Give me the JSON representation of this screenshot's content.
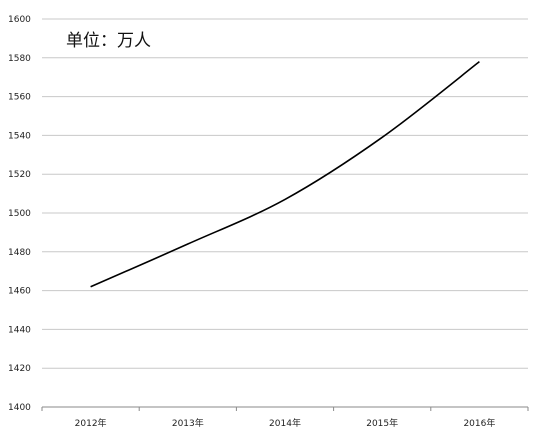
{
  "chart_data": {
    "type": "line",
    "unit_label": "单位：万人",
    "categories": [
      "2012年",
      "2013年",
      "2014年",
      "2015年",
      "2016年"
    ],
    "series": [
      {
        "values": [
          1462,
          1484,
          1507,
          1539,
          1578
        ]
      }
    ],
    "ylim": [
      1400,
      1600
    ],
    "yticks": [
      1400,
      1420,
      1440,
      1460,
      1480,
      1500,
      1520,
      1540,
      1560,
      1580,
      1600
    ],
    "grid": true,
    "line_color": "#000000",
    "grid_color": "#c8c8c8"
  }
}
